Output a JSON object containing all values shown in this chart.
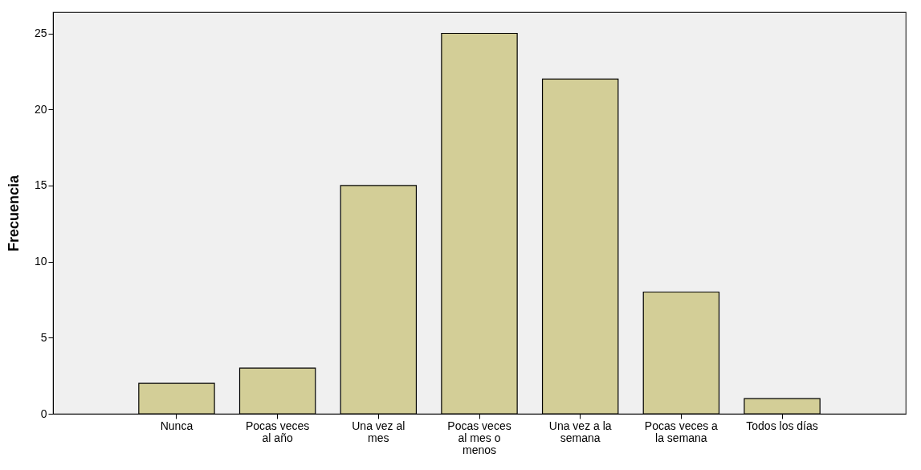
{
  "chart_data": {
    "type": "bar",
    "ylabel": "Frecuencia",
    "categories": [
      "Nunca",
      "Pocas veces al año",
      "Una vez al mes",
      "Pocas veces al mes o menos",
      "Una vez a la semana",
      "Pocas veces a la semana",
      "Todos los días"
    ],
    "values": [
      2,
      3,
      15,
      25,
      22,
      8,
      1
    ],
    "color": "#d3ce97",
    "ylim": [
      0,
      26.4
    ],
    "yticks": [
      0,
      5,
      10,
      15,
      20,
      25
    ],
    "grid": false
  }
}
